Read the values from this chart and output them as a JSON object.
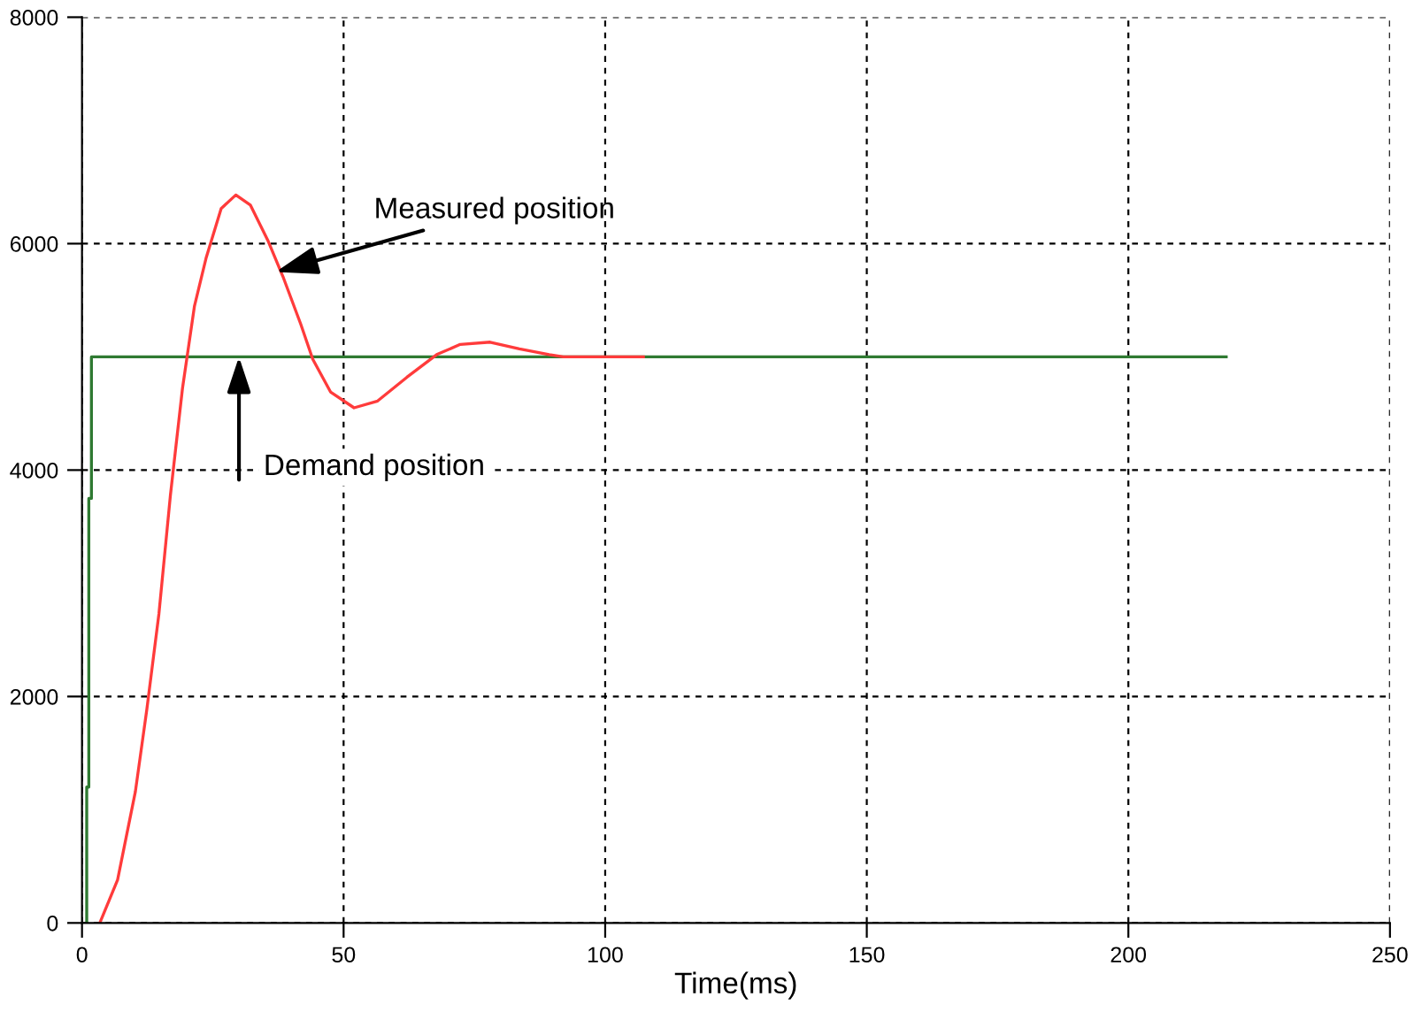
{
  "chart_data": {
    "type": "line",
    "xlabel": "Time(ms)",
    "xlim": [
      0,
      250
    ],
    "xticks": [
      0,
      50,
      100,
      150,
      200,
      250
    ],
    "ylim": [
      0,
      8000
    ],
    "yticks": [
      0,
      2000,
      4000,
      6000,
      8000
    ],
    "grid": true,
    "marker": "none",
    "series": [
      {
        "color": "#2f7a32",
        "x": [
          0.9,
          0.9,
          1.3,
          1.3,
          1.8,
          1.8,
          218.7
        ],
        "values": [
          0,
          1200,
          1200,
          3750,
          3750,
          5000,
          5000
        ]
      },
      {
        "color": "#ff3b3b",
        "x": [
          3.4,
          6.8,
          10.2,
          12.4,
          14.7,
          16.9,
          19.2,
          21.5,
          23.7,
          26.6,
          29.4,
          32.2,
          35.6,
          38.4,
          41.8,
          44.1,
          47.5,
          52.0,
          56.5,
          62.1,
          67.8,
          72.3,
          78.0,
          83.6,
          89.3,
          92.0,
          107.3
        ],
        "values": [
          0,
          380,
          1160,
          1890,
          2730,
          3780,
          4720,
          5450,
          5870,
          6310,
          6430,
          6340,
          6020,
          5710,
          5290,
          4980,
          4690,
          4550,
          4610,
          4820,
          5020,
          5110,
          5130,
          5070,
          5020,
          5000,
          5000
        ]
      }
    ],
    "annotations": [
      {
        "text": "Measured position",
        "x": 37,
        "y": 5750
      },
      {
        "text": "Demand position",
        "x": 30,
        "y": 5000
      }
    ]
  }
}
